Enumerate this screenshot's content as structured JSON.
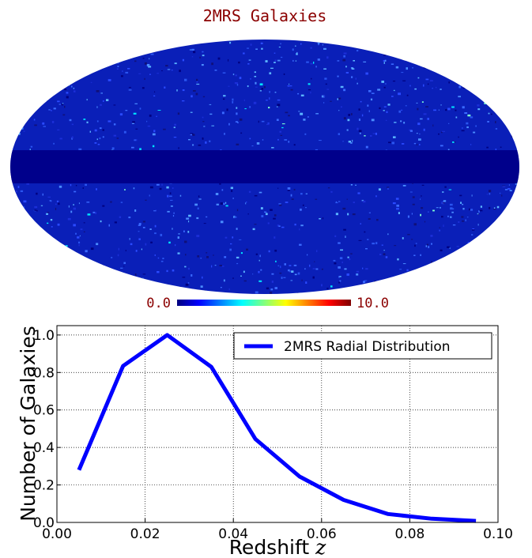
{
  "map": {
    "title": "2MRS Galaxies",
    "projection": "mollweide",
    "colormap": "jet",
    "colorbar": {
      "min_label": "0.0",
      "max_label": "10.0",
      "min": 0.0,
      "max": 10.0
    },
    "colors": {
      "title": "#8b0000",
      "background": "#00008b",
      "accent": "#1e3cff"
    }
  },
  "chart_data": {
    "type": "line",
    "xlabel": "Redshift",
    "xlabel_var": "z",
    "ylabel": "Number of Galaxies",
    "xlim": [
      0.0,
      0.1
    ],
    "ylim": [
      0.0,
      1.05
    ],
    "xticks": [
      "0.00",
      "0.02",
      "0.04",
      "0.06",
      "0.08",
      "0.10"
    ],
    "yticks": [
      "0.0",
      "0.2",
      "0.4",
      "0.6",
      "0.8",
      "1.0"
    ],
    "grid": true,
    "legend": "top-right",
    "series": [
      {
        "name": "2MRS Radial Distribution",
        "color": "#0000ff",
        "x": [
          0.005,
          0.015,
          0.025,
          0.035,
          0.045,
          0.055,
          0.065,
          0.075,
          0.085,
          0.095
        ],
        "y": [
          0.28,
          0.835,
          1.0,
          0.83,
          0.445,
          0.245,
          0.12,
          0.045,
          0.02,
          0.008
        ]
      }
    ]
  }
}
